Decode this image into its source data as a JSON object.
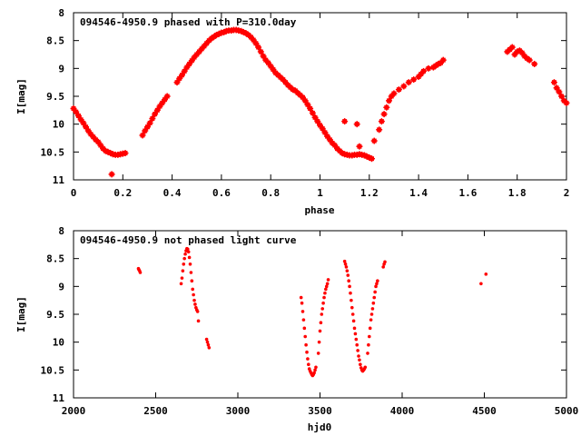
{
  "chart_data": [
    {
      "type": "scatter",
      "title": "094546-4950.9 phased with P=310.0day",
      "xlabel": "phase",
      "ylabel": "I[mag]",
      "xlim": [
        0,
        2
      ],
      "ylim": [
        8,
        11
      ],
      "y_inverted": true,
      "grid": false,
      "marker_color": "#ff0000",
      "x_ticks": [
        0,
        0.2,
        0.4,
        0.6,
        0.8,
        1,
        1.2,
        1.4,
        1.6,
        1.8,
        2
      ],
      "x_tick_labels": [
        "0",
        "0.2",
        "0.4",
        "0.6",
        "0.8",
        "1",
        "1.2",
        "1.4",
        "1.6",
        "1.8",
        "2"
      ],
      "y_ticks": [
        8,
        8.5,
        9,
        9.5,
        10,
        10.5,
        11
      ],
      "y_tick_labels": [
        "8",
        "8.5",
        "9",
        "9.5",
        "10",
        "10.5",
        "11"
      ],
      "series": [
        {
          "x": [
            0.0,
            0.01,
            0.02,
            0.03,
            0.04,
            0.05,
            0.06,
            0.07,
            0.08,
            0.09,
            0.1,
            0.11,
            0.12,
            0.13,
            0.14,
            0.15,
            0.16,
            0.17,
            0.18,
            0.19,
            0.2,
            0.21,
            0.155,
            0.28,
            0.29,
            0.3,
            0.31,
            0.32,
            0.33,
            0.34,
            0.35,
            0.36,
            0.37,
            0.38,
            0.42,
            0.43,
            0.44,
            0.45,
            0.46,
            0.47,
            0.48,
            0.49,
            0.5,
            0.51,
            0.52,
            0.53,
            0.54,
            0.55,
            0.56,
            0.57,
            0.58,
            0.59,
            0.6,
            0.61,
            0.62,
            0.63,
            0.64,
            0.65,
            0.66,
            0.67,
            0.68,
            0.69,
            0.7,
            0.71,
            0.72,
            0.73,
            0.74,
            0.75,
            0.76,
            0.77,
            0.78,
            0.79,
            0.8,
            0.81,
            0.82,
            0.83,
            0.84,
            0.85,
            0.86,
            0.87,
            0.88,
            0.89,
            0.9,
            0.91,
            0.92,
            0.93,
            0.94,
            0.95,
            0.96,
            0.97,
            0.98,
            0.99,
            1.0,
            1.01,
            1.02,
            1.03,
            1.04,
            1.05,
            1.06,
            1.07,
            1.08,
            1.09,
            1.1,
            1.11,
            1.12,
            1.13,
            1.14,
            1.15,
            1.16,
            1.17,
            1.18,
            1.19,
            1.2,
            1.21,
            1.1,
            1.15,
            1.16,
            1.22,
            1.24,
            1.25,
            1.26,
            1.27,
            1.28,
            1.29,
            1.3,
            1.32,
            1.34,
            1.36,
            1.38,
            1.4,
            1.41,
            1.42,
            1.44,
            1.46,
            1.47,
            1.48,
            1.49,
            1.5,
            1.76,
            1.77,
            1.78,
            1.79,
            1.8,
            1.81,
            1.82,
            1.83,
            1.84,
            1.85,
            1.87,
            1.95,
            1.96,
            1.97,
            1.98,
            1.99,
            2.0
          ],
          "y": [
            9.72,
            9.78,
            9.85,
            9.92,
            9.98,
            10.05,
            10.12,
            10.18,
            10.23,
            10.28,
            10.32,
            10.38,
            10.44,
            10.48,
            10.5,
            10.52,
            10.54,
            10.55,
            10.55,
            10.54,
            10.53,
            10.52,
            10.9,
            10.2,
            10.12,
            10.05,
            9.98,
            9.9,
            9.82,
            9.75,
            9.68,
            9.62,
            9.56,
            9.5,
            9.25,
            9.18,
            9.12,
            9.05,
            8.98,
            8.92,
            8.86,
            8.8,
            8.75,
            8.7,
            8.65,
            8.6,
            8.55,
            8.5,
            8.46,
            8.43,
            8.4,
            8.38,
            8.36,
            8.35,
            8.33,
            8.32,
            8.32,
            8.31,
            8.31,
            8.32,
            8.33,
            8.35,
            8.37,
            8.4,
            8.44,
            8.49,
            8.55,
            8.62,
            8.7,
            8.78,
            8.85,
            8.9,
            8.96,
            9.02,
            9.08,
            9.12,
            9.16,
            9.2,
            9.25,
            9.3,
            9.34,
            9.38,
            9.4,
            9.44,
            9.48,
            9.52,
            9.58,
            9.65,
            9.72,
            9.8,
            9.88,
            9.95,
            10.02,
            10.08,
            10.15,
            10.22,
            10.28,
            10.34,
            10.38,
            10.44,
            10.48,
            10.52,
            10.54,
            10.55,
            10.56,
            10.56,
            10.55,
            10.55,
            10.54,
            10.55,
            10.56,
            10.58,
            10.6,
            10.62,
            9.95,
            10.0,
            10.4,
            10.3,
            10.1,
            9.95,
            9.82,
            9.7,
            9.58,
            9.5,
            9.45,
            9.38,
            9.32,
            9.25,
            9.2,
            9.15,
            9.1,
            9.05,
            9.0,
            8.98,
            8.95,
            8.92,
            8.9,
            8.85,
            8.7,
            8.66,
            8.62,
            8.75,
            8.7,
            8.68,
            8.72,
            8.78,
            8.82,
            8.85,
            8.92,
            9.25,
            9.35,
            9.42,
            9.5,
            9.58,
            9.62
          ]
        }
      ]
    },
    {
      "type": "scatter",
      "title": "094546-4950.9 not phased light curve",
      "xlabel": "hjd0",
      "ylabel": "I[mag]",
      "xlim": [
        2000,
        5000
      ],
      "ylim": [
        8,
        11
      ],
      "y_inverted": true,
      "grid": false,
      "marker_color": "#ff0000",
      "x_ticks": [
        2000,
        2500,
        3000,
        3500,
        4000,
        4500,
        5000
      ],
      "x_tick_labels": [
        "2000",
        "2500",
        "3000",
        "3500",
        "4000",
        "4500",
        "5000"
      ],
      "y_ticks": [
        8,
        8.5,
        9,
        9.5,
        10,
        10.5,
        11
      ],
      "y_tick_labels": [
        "8",
        "8.5",
        "9",
        "9.5",
        "10",
        "10.5",
        "11"
      ],
      "series": [
        {
          "x": [
            2395,
            2398,
            2402,
            2406,
            2655,
            2660,
            2665,
            2670,
            2675,
            2680,
            2685,
            2690,
            2695,
            2700,
            2705,
            2710,
            2715,
            2720,
            2725,
            2730,
            2735,
            2740,
            2745,
            2750,
            2755,
            2760,
            2810,
            2815,
            2820,
            2825,
            3385,
            3390,
            3395,
            3400,
            3405,
            3410,
            3415,
            3420,
            3425,
            3430,
            3435,
            3440,
            3445,
            3450,
            3455,
            3460,
            3465,
            3470,
            3475,
            3490,
            3495,
            3500,
            3505,
            3510,
            3515,
            3520,
            3525,
            3530,
            3535,
            3540,
            3545,
            3550,
            3650,
            3655,
            3660,
            3665,
            3670,
            3675,
            3680,
            3685,
            3690,
            3695,
            3700,
            3705,
            3710,
            3715,
            3720,
            3725,
            3730,
            3735,
            3740,
            3745,
            3750,
            3755,
            3760,
            3765,
            3770,
            3775,
            3790,
            3795,
            3800,
            3805,
            3810,
            3815,
            3820,
            3825,
            3830,
            3835,
            3840,
            3845,
            3850,
            3885,
            3890,
            3895,
            4480,
            4510
          ],
          "y": [
            8.68,
            8.7,
            8.72,
            8.75,
            8.95,
            8.85,
            8.72,
            8.6,
            8.5,
            8.42,
            8.36,
            8.32,
            8.33,
            8.38,
            8.48,
            8.6,
            8.75,
            8.9,
            9.05,
            9.15,
            9.25,
            9.32,
            9.38,
            9.42,
            9.45,
            9.62,
            9.95,
            10.0,
            10.05,
            10.1,
            9.2,
            9.3,
            9.45,
            9.6,
            9.75,
            9.9,
            10.05,
            10.18,
            10.3,
            10.4,
            10.48,
            10.52,
            10.55,
            10.58,
            10.6,
            10.58,
            10.55,
            10.5,
            10.45,
            10.2,
            10.0,
            9.8,
            9.65,
            9.5,
            9.4,
            9.3,
            9.2,
            9.12,
            9.05,
            9.0,
            8.95,
            8.88,
            8.55,
            8.6,
            8.65,
            8.72,
            8.8,
            8.9,
            9.0,
            9.12,
            9.25,
            9.38,
            9.5,
            9.62,
            9.75,
            9.85,
            9.95,
            10.05,
            10.15,
            10.25,
            10.32,
            10.4,
            10.46,
            10.5,
            10.52,
            10.5,
            10.48,
            10.45,
            10.2,
            10.05,
            9.9,
            9.75,
            9.6,
            9.5,
            9.4,
            9.3,
            9.2,
            9.1,
            9.0,
            8.95,
            8.9,
            8.65,
            8.6,
            8.56,
            8.95,
            8.78
          ]
        }
      ]
    }
  ]
}
